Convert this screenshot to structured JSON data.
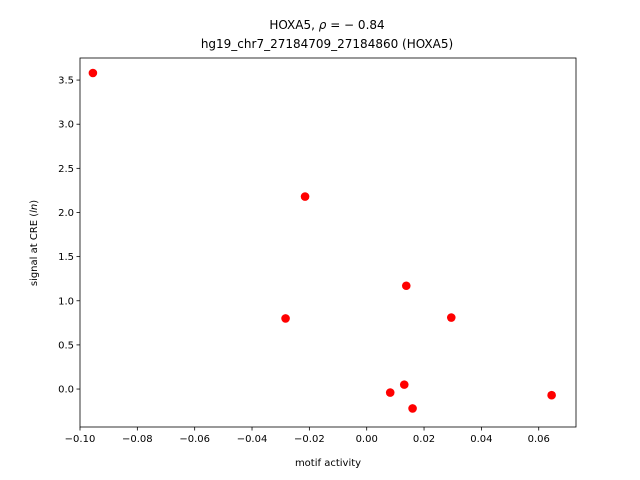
{
  "chart_data": {
    "type": "scatter",
    "title_line1": "HOXA5, ",
    "title_rho": "ρ",
    "title_value": " = − 0.84",
    "title_line2": "hg19_chr7_27184709_27184860 (HOXA5)",
    "xlabel": "motif activity",
    "ylabel_prefix": "signal at CRE (",
    "ylabel_italic": "ln",
    "ylabel_suffix": ")",
    "xlim": [
      -0.1,
      0.073
    ],
    "ylim": [
      -0.43,
      3.75
    ],
    "xticks": [
      -0.1,
      -0.08,
      -0.06,
      -0.04,
      -0.02,
      0.0,
      0.02,
      0.04,
      0.06
    ],
    "xtick_labels": [
      "−0.10",
      "−0.08",
      "−0.06",
      "−0.04",
      "−0.02",
      "0.00",
      "0.02",
      "0.04",
      "0.06"
    ],
    "yticks": [
      0.0,
      0.5,
      1.0,
      1.5,
      2.0,
      2.5,
      3.0,
      3.5
    ],
    "ytick_labels": [
      "0.0",
      "0.5",
      "1.0",
      "1.5",
      "2.0",
      "2.5",
      "3.0",
      "3.5"
    ],
    "marker_color": "#ff0000",
    "grid": false,
    "points": [
      {
        "x": -0.0955,
        "y": 3.58
      },
      {
        "x": -0.0215,
        "y": 2.18
      },
      {
        "x": -0.0283,
        "y": 0.8
      },
      {
        "x": 0.0138,
        "y": 1.17
      },
      {
        "x": 0.0295,
        "y": 0.81
      },
      {
        "x": 0.0082,
        "y": -0.04
      },
      {
        "x": 0.0131,
        "y": 0.05
      },
      {
        "x": 0.016,
        "y": -0.22
      },
      {
        "x": 0.0645,
        "y": -0.07
      }
    ]
  }
}
